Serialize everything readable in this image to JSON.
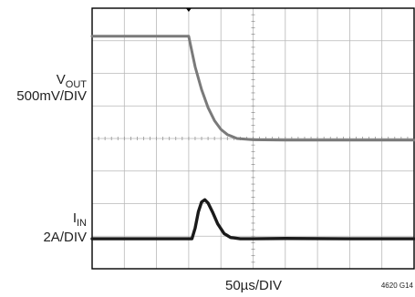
{
  "chart_data": {
    "type": "line",
    "title": "",
    "timebase_label": "50µs/DIV",
    "figure_id": "4620 G14",
    "grid": true,
    "x_divisions": 10,
    "y_divisions": 8,
    "trigger_marker_div": 3,
    "series": [
      {
        "name": "VOUT",
        "label_main": "V",
        "label_sub": "OUT",
        "scale": "500mV/DIV",
        "color": "#7a7a7a",
        "x_div": [
          0,
          3.0,
          3.05,
          3.2,
          3.4,
          3.6,
          3.8,
          4.0,
          4.2,
          4.5,
          5.0,
          6.0,
          8.0,
          10.0
        ],
        "y_div": [
          7.14,
          7.14,
          6.9,
          6.2,
          5.5,
          4.95,
          4.55,
          4.28,
          4.12,
          4.0,
          3.96,
          3.95,
          3.95,
          3.95
        ]
      },
      {
        "name": "IIN",
        "label_main": "I",
        "label_sub": "IN",
        "scale": "2A/DIV",
        "color": "#1a1a1a",
        "x_div": [
          0,
          3.1,
          3.2,
          3.3,
          3.4,
          3.5,
          3.6,
          3.75,
          3.9,
          4.1,
          4.3,
          4.6,
          5.0,
          6.0,
          8.0,
          10.0
        ],
        "y_div": [
          0.92,
          0.92,
          1.25,
          1.75,
          2.05,
          2.12,
          2.02,
          1.72,
          1.38,
          1.08,
          0.96,
          0.92,
          0.92,
          0.93,
          0.92,
          0.92
        ]
      }
    ]
  }
}
